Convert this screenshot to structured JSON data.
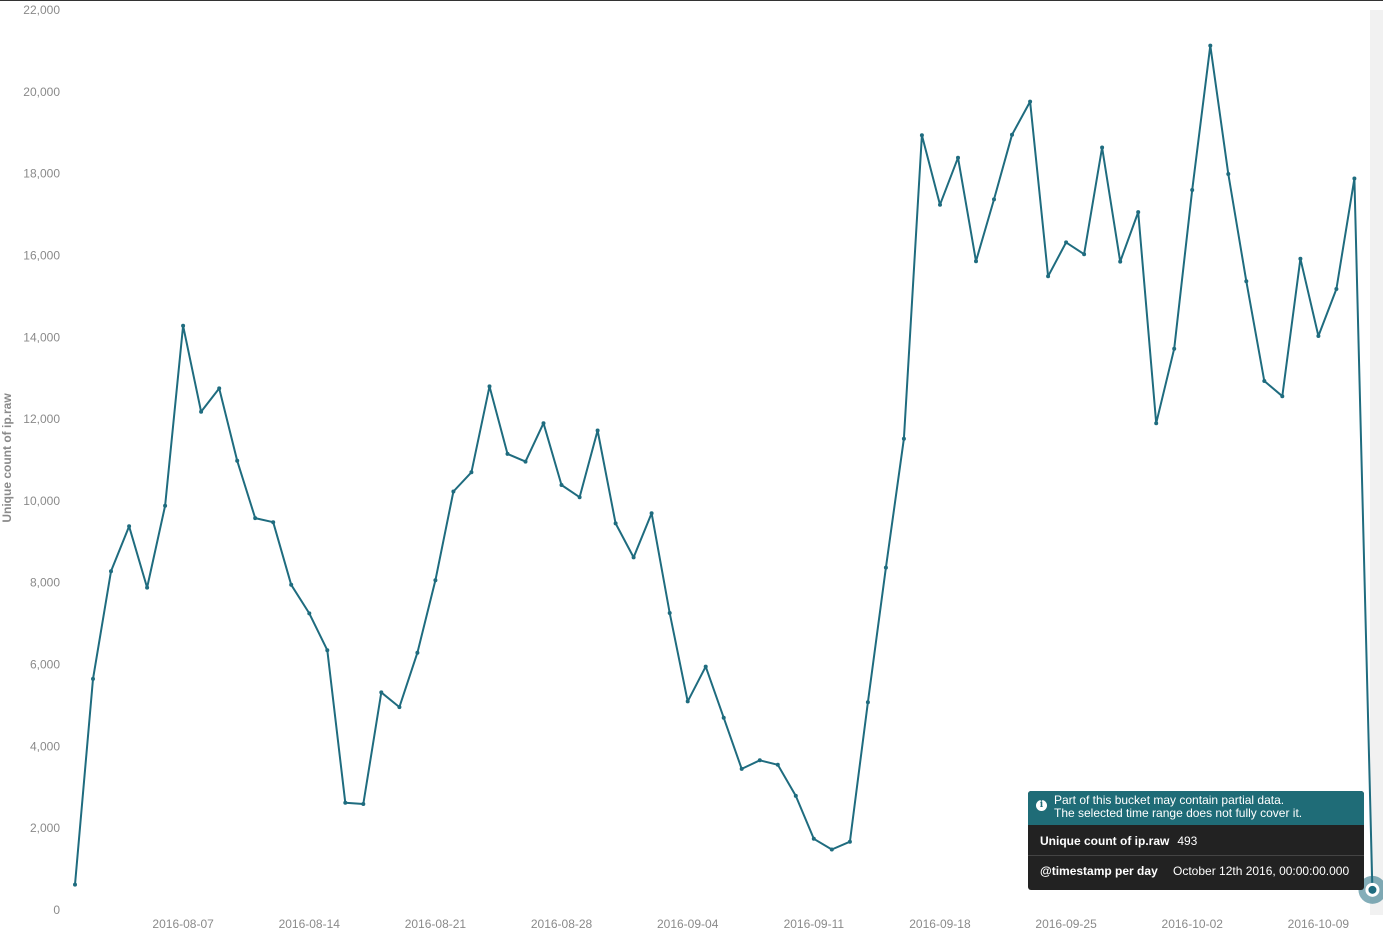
{
  "chart_data": {
    "type": "line",
    "ylabel": "Unique count of ip.raw",
    "xlabel": "",
    "ylim": [
      0,
      22000
    ],
    "y_ticks": [
      "0",
      "2,000",
      "4,000",
      "6,000",
      "8,000",
      "10,000",
      "12,000",
      "14,000",
      "16,000",
      "18,000",
      "20,000",
      "22,000"
    ],
    "y_tick_values": [
      0,
      2000,
      4000,
      6000,
      8000,
      10000,
      12000,
      14000,
      16000,
      18000,
      20000,
      22000
    ],
    "x_start": "2016-08-01",
    "x_ticks": [
      "2016-08-07",
      "2016-08-14",
      "2016-08-21",
      "2016-08-28",
      "2016-09-04",
      "2016-09-11",
      "2016-09-18",
      "2016-09-25",
      "2016-10-02",
      "2016-10-09"
    ],
    "line_color": "#1f6c7f",
    "grid": false,
    "series": [
      {
        "name": "Unique count of ip.raw",
        "values": [
          620,
          5650,
          8280,
          9380,
          7880,
          9880,
          14280,
          12180,
          12750,
          10980,
          9580,
          9480,
          7950,
          7250,
          6350,
          2620,
          2590,
          5320,
          4960,
          6290,
          8060,
          10230,
          10700,
          12800,
          11150,
          10960,
          11900,
          10390,
          10090,
          11720,
          9450,
          8620,
          9700,
          7260,
          5100,
          5950,
          4700,
          3450,
          3660,
          3550,
          2790,
          1740,
          1480,
          1670,
          5080,
          8370,
          11520,
          18940,
          17240,
          18390,
          15860,
          17370,
          18950,
          19760,
          15490,
          16320,
          16030,
          18640,
          15850,
          17060,
          11900,
          13720,
          17600,
          21130,
          17990,
          15370,
          12930,
          12560,
          15920,
          14030,
          15180,
          17880,
          493
        ]
      }
    ]
  },
  "tooltip": {
    "header_line1": "Part of this bucket may contain partial data.",
    "header_line2": "The selected time range does not fully cover it.",
    "metric_label": "Unique count of ip.raw",
    "metric_value": "493",
    "time_label": "@timestamp per day",
    "time_value": "October 12th 2016, 00:00:00.000"
  },
  "colors": {
    "tooltip_header": "#1f6c77",
    "tooltip_body": "#222222"
  }
}
